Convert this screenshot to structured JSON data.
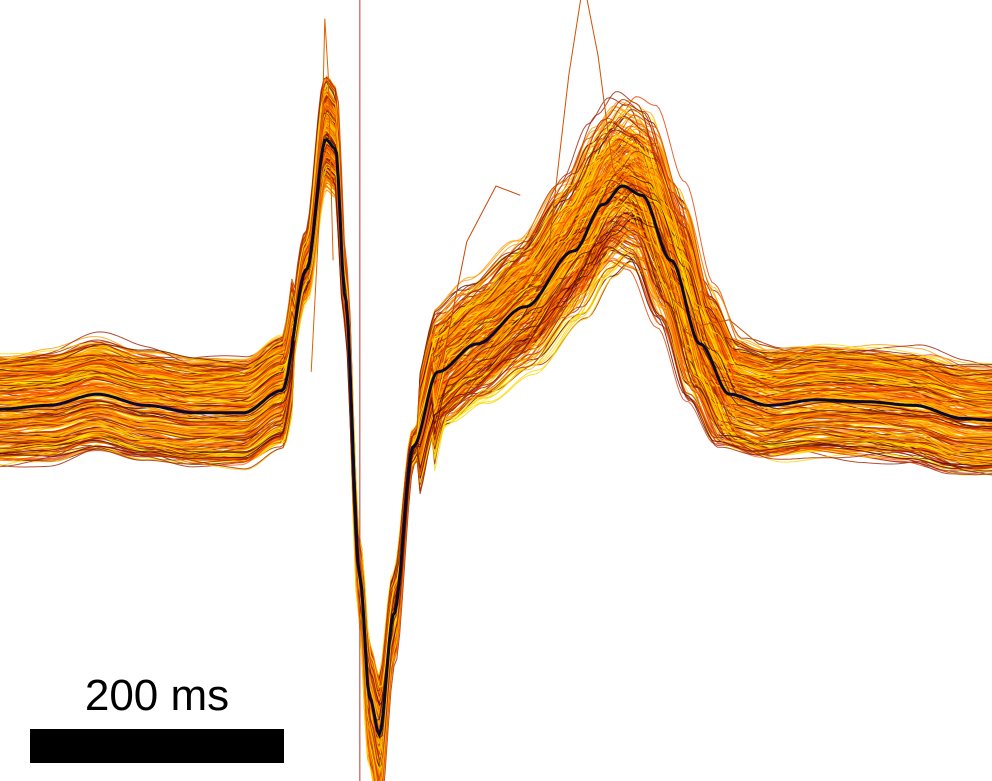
{
  "chart_data": {
    "type": "line",
    "title": "",
    "xlabel": "",
    "ylabel": "",
    "x_unit": "ms",
    "x_range_ms": [
      -740,
      1300
    ],
    "y_range": [
      -2.0,
      2.2
    ],
    "marker_ms": 0,
    "scale_bar": {
      "label": "200 ms",
      "length_ms": 200
    },
    "mean_trace": {
      "name": "",
      "color": "#0a0a2a",
      "t_ms": [
        -740,
        -640,
        -540,
        -440,
        -340,
        -240,
        -160,
        -110,
        -70,
        -50,
        -30,
        0,
        20,
        40,
        70,
        110,
        160,
        240,
        340,
        440,
        500,
        540,
        580,
        640,
        700,
        760,
        840,
        940,
        1040,
        1140,
        1240,
        1300
      ],
      "values": [
        0.0,
        0.02,
        0.08,
        0.02,
        -0.02,
        -0.02,
        0.1,
        0.75,
        1.45,
        1.4,
        0.6,
        -0.9,
        -1.55,
        -1.75,
        -1.1,
        -0.2,
        0.2,
        0.35,
        0.55,
        0.85,
        1.1,
        1.2,
        1.15,
        0.8,
        0.35,
        0.08,
        0.02,
        0.05,
        0.04,
        0.02,
        -0.05,
        -0.06
      ]
    },
    "overlay_traces": {
      "count_drawn": 360,
      "colors": [
        "#ffd700",
        "#ffee00",
        "#ffb000",
        "#ff9900",
        "#ff7a00",
        "#ff5a00",
        "#e04000",
        "#a02000",
        "#5a0a00"
      ],
      "description_values_only": true
    },
    "outlier_traces": [
      {
        "color": "#e06000",
        "t_ms": [
          -100,
          -80,
          -72,
          -65,
          -55
        ],
        "values": [
          0.2,
          1.2,
          2.1,
          1.8,
          0.8
        ]
      },
      {
        "color": "#d05000",
        "t_ms": [
          390,
          430,
          460,
          490,
          520,
          560
        ],
        "values": [
          0.9,
          1.8,
          2.3,
          1.9,
          1.3,
          1.1
        ]
      },
      {
        "color": "#cc4400",
        "t_ms": [
          170,
          220,
          280,
          330
        ],
        "values": [
          0.25,
          0.9,
          1.2,
          1.15
        ]
      },
      {
        "color": "#c05000",
        "t_ms": [
          600,
          640,
          700,
          760,
          820,
          900
        ],
        "values": [
          0.9,
          0.6,
          0.45,
          0.48,
          0.35,
          0.3
        ]
      }
    ]
  }
}
